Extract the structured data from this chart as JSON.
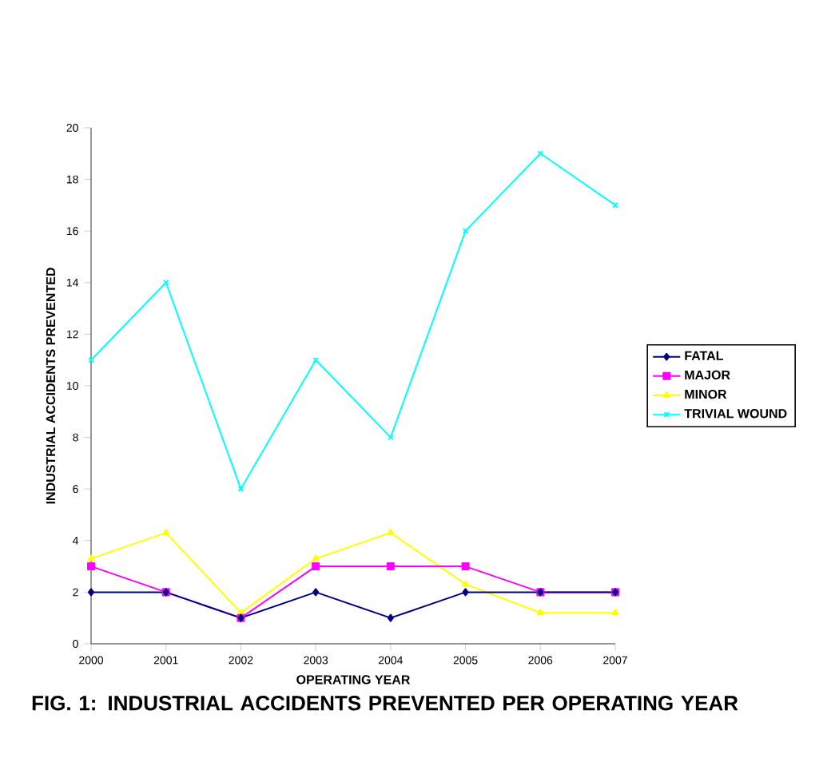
{
  "chart_data": {
    "type": "line",
    "xlabel": "OPERATING YEAR",
    "ylabel": "INDUSTRIAL ACCIDENTS PREVENTED",
    "annotations": [
      "FIG. 1: INDUSTRIAL ACCIDENTS PREVENTED PER OPERATING YEAR"
    ],
    "categories": [
      "2000",
      "2001",
      "2002",
      "2003",
      "2004",
      "2005",
      "2006",
      "2007"
    ],
    "series": [
      {
        "name": "FATAL",
        "color": "#000080",
        "marker": "diamond",
        "values": [
          2,
          2,
          1,
          2,
          1,
          2,
          2,
          2
        ]
      },
      {
        "name": "MAJOR",
        "color": "#ff00ff",
        "marker": "square",
        "values": [
          3,
          2,
          1,
          3,
          3,
          3,
          2,
          2
        ]
      },
      {
        "name": "MINOR",
        "color": "#ffff00",
        "marker": "triangle",
        "values": [
          3.3,
          4.3,
          1.2,
          3.3,
          4.3,
          2.3,
          1.2,
          1.2
        ]
      },
      {
        "name": "TRIVIAL WOUND",
        "color": "#00ffff",
        "marker": "cross",
        "values": [
          11,
          14,
          6,
          11,
          8,
          16,
          19,
          17
        ]
      }
    ],
    "ylim": [
      0,
      20
    ],
    "yticks": [
      0,
      2,
      4,
      6,
      8,
      10,
      12,
      14,
      16,
      18,
      20
    ],
    "legend": "right",
    "line_style": "solid",
    "grid": false
  }
}
